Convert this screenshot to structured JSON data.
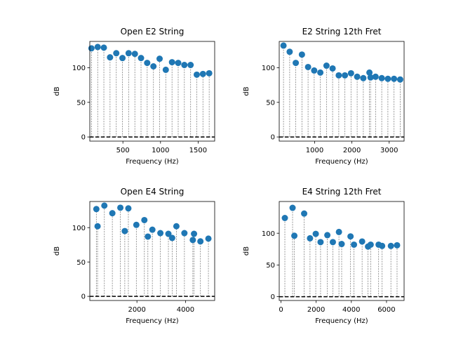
{
  "chart_data": [
    {
      "type": "stem",
      "title": "Open E2 String",
      "xlabel": "Frequency (Hz)",
      "ylabel": "dB",
      "xlim": [
        60,
        1720
      ],
      "ylim": [
        -6,
        138
      ],
      "xticks": [
        500,
        1000,
        1500
      ],
      "yticks": [
        0,
        50,
        100
      ],
      "baseline": 0,
      "x": [
        82,
        165,
        247,
        329,
        412,
        494,
        576,
        659,
        741,
        823,
        906,
        988,
        1070,
        1153,
        1235,
        1317,
        1400,
        1482,
        1564,
        1647
      ],
      "y": [
        128,
        130,
        129,
        115,
        121,
        114,
        121,
        120,
        114,
        107,
        102,
        113,
        97,
        108,
        107,
        104,
        104,
        90,
        91,
        92
      ]
    },
    {
      "type": "stem",
      "title": "E2 String 12th Fret",
      "xlabel": "Frequency (Hz)",
      "ylabel": "dB",
      "xlim": [
        50,
        3400
      ],
      "ylim": [
        -6,
        138
      ],
      "xticks": [
        1000,
        2000,
        3000
      ],
      "yticks": [
        0,
        50,
        100
      ],
      "baseline": 0,
      "x": [
        165,
        330,
        494,
        659,
        824,
        988,
        1153,
        1318,
        1482,
        1647,
        1812,
        1976,
        2141,
        2306,
        2470,
        2500,
        2635,
        2800,
        2965,
        3130,
        3295
      ],
      "y": [
        132,
        123,
        107,
        119,
        101,
        96,
        93,
        103,
        99,
        89,
        89,
        92,
        87,
        85,
        93,
        86,
        87,
        85,
        84,
        84,
        83
      ]
    },
    {
      "type": "stem",
      "title": "Open E4 String",
      "xlabel": "Frequency (Hz)",
      "ylabel": "dB",
      "xlim": [
        60,
        5200
      ],
      "ylim": [
        -6,
        138
      ],
      "xticks": [
        2000,
        4000
      ],
      "yticks": [
        0,
        50,
        100
      ],
      "baseline": 0,
      "x": [
        330,
        380,
        659,
        988,
        1318,
        1500,
        1647,
        1976,
        2306,
        2450,
        2635,
        2965,
        3295,
        3450,
        3624,
        3954,
        4300,
        4350,
        4613,
        4942
      ],
      "y": [
        127,
        102,
        132,
        121,
        129,
        95,
        128,
        104,
        111,
        87,
        97,
        92,
        91,
        85,
        102,
        92,
        82,
        91,
        80,
        84
      ]
    },
    {
      "type": "stem",
      "title": "E4 String 12th Fret",
      "xlabel": "Frequency (Hz)",
      "ylabel": "dB",
      "xlim": [
        -100,
        7000
      ],
      "ylim": [
        -6,
        150
      ],
      "xticks": [
        0,
        2000,
        4000,
        6000
      ],
      "yticks": [
        0,
        50,
        100
      ],
      "baseline": 0,
      "x": [
        220,
        659,
        760,
        1318,
        1650,
        1977,
        2250,
        2636,
        2950,
        3295,
        3450,
        3954,
        4150,
        4613,
        4950,
        5100,
        5550,
        5750,
        6250,
        6600
      ],
      "y": [
        124,
        140,
        96,
        131,
        92,
        99,
        86,
        97,
        86,
        102,
        83,
        95,
        82,
        87,
        79,
        82,
        82,
        80,
        80,
        81
      ]
    }
  ],
  "colors": {
    "marker": "#1f77b4",
    "stem": "#808080",
    "baseline": "#000000"
  }
}
